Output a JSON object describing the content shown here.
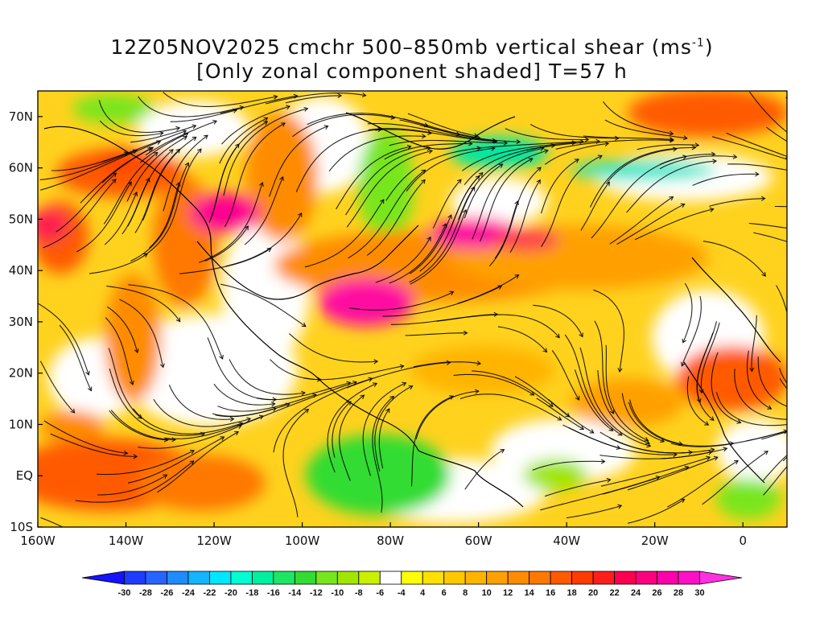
{
  "title": {
    "line1_main": "12Z05NOV2025 cmchr 500–850mb vertical shear (ms",
    "line1_sup": "-1",
    "line1_end": ")",
    "line2": "[Only zonal component shaded] T=57 h"
  },
  "map": {
    "lon_range": [
      -160,
      10
    ],
    "lat_range": [
      -10,
      75
    ],
    "lat_labels": [
      {
        "lat": 70,
        "text": "70N"
      },
      {
        "lat": 60,
        "text": "60N"
      },
      {
        "lat": 50,
        "text": "50N"
      },
      {
        "lat": 40,
        "text": "40N"
      },
      {
        "lat": 30,
        "text": "30N"
      },
      {
        "lat": 20,
        "text": "20N"
      },
      {
        "lat": 10,
        "text": "10N"
      },
      {
        "lat": 0,
        "text": "EQ"
      },
      {
        "lat": -10,
        "text": "10S"
      }
    ],
    "lon_labels": [
      {
        "lon": -160,
        "text": "160W"
      },
      {
        "lon": -140,
        "text": "140W"
      },
      {
        "lon": -120,
        "text": "120W"
      },
      {
        "lon": -100,
        "text": "100W"
      },
      {
        "lon": -80,
        "text": "80W"
      },
      {
        "lon": -60,
        "text": "60W"
      },
      {
        "lon": -40,
        "text": "40W"
      },
      {
        "lon": -20,
        "text": "20W"
      },
      {
        "lon": 0,
        "text": "0"
      }
    ]
  },
  "colorbar": {
    "labels": [
      "-30",
      "-28",
      "-26",
      "-24",
      "-22",
      "-20",
      "-18",
      "-16",
      "-14",
      "-12",
      "-10",
      "-8",
      "-6",
      "-4",
      "4",
      "6",
      "8",
      "10",
      "12",
      "14",
      "16",
      "18",
      "20",
      "22",
      "24",
      "26",
      "28",
      "30"
    ],
    "colors": [
      "#1414ff",
      "#1e3cff",
      "#2864ff",
      "#1e8cff",
      "#14b4ff",
      "#00e6ff",
      "#00ffd2",
      "#00f0a0",
      "#1ee664",
      "#32dc32",
      "#78e61e",
      "#a0e600",
      "#c8f000",
      "#ffffff",
      "#ffff00",
      "#ffe000",
      "#ffc800",
      "#ffb400",
      "#ffa000",
      "#ff8c00",
      "#ff7800",
      "#ff5a00",
      "#ff3c00",
      "#ff1e1e",
      "#ff0050",
      "#ff0080",
      "#ff00aa",
      "#ff10c8",
      "#ff30e0"
    ]
  }
}
